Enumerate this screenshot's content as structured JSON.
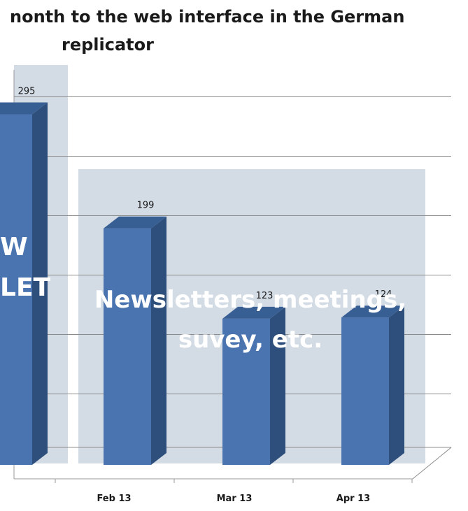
{
  "chart_data": {
    "type": "bar",
    "title_lines": [
      "nonth to the web interface in the German",
      "replicator"
    ],
    "categories": [
      "",
      "Feb 13",
      "Mar 13",
      "Apr 13"
    ],
    "values": [
      295,
      199,
      123,
      124
    ],
    "value_labels": [
      "295",
      "199",
      "123",
      "124"
    ],
    "ylim": [
      0,
      300
    ],
    "grid": true,
    "xlabel": "",
    "ylabel": "",
    "annotations": [
      {
        "lines": [
          "W",
          "LET"
        ]
      },
      {
        "lines": [
          "Newsletters, meetings,",
          "suvey, etc."
        ]
      }
    ],
    "colors": {
      "bar_front": "#4a74b0",
      "bar_side": "#2e4f7c",
      "bar_top": "#385f94",
      "highlight": "#d3dbe5",
      "grid": "#8c8c8c",
      "annotation_text": "#ffffff"
    }
  }
}
